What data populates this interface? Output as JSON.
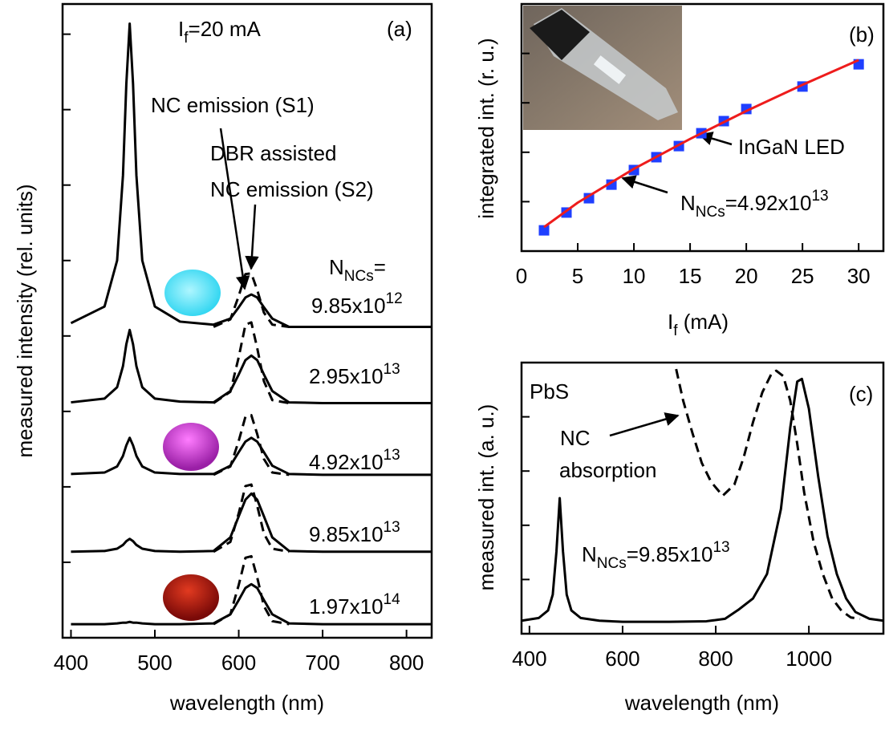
{
  "chart_data": [
    {
      "type": "line",
      "xlabel": "wavelength (nm)",
      "ylabel": "measured intensity (rel. units)",
      "xlim": [
        390,
        830
      ],
      "xticks": [
        400,
        500,
        600,
        700,
        800
      ],
      "ylim": [
        0,
        8.4
      ],
      "yticks": [
        1,
        2,
        3,
        4,
        5,
        6,
        7,
        8
      ],
      "x": [
        400,
        440,
        455,
        462,
        466,
        470,
        474,
        478,
        485,
        500,
        530,
        570,
        590,
        600,
        608,
        615,
        622,
        630,
        640,
        660,
        700,
        830
      ],
      "series": [
        {
          "color": "#000000",
          "dashed": false,
          "values": [
            4.17,
            4.39,
            5.0,
            6.13,
            7.34,
            8.14,
            7.34,
            6.13,
            5.0,
            4.39,
            4.19,
            4.15,
            4.23,
            4.38,
            4.51,
            4.55,
            4.51,
            4.38,
            4.23,
            4.12,
            4.12,
            4.12
          ]
        },
        {
          "color": "#000000",
          "dashed": true,
          "values": [
            null,
            null,
            null,
            null,
            null,
            null,
            null,
            null,
            null,
            null,
            null,
            4.12,
            4.22,
            4.53,
            4.82,
            4.83,
            4.61,
            4.31,
            4.15,
            4.12,
            null,
            null
          ]
        },
        {
          "color": "#000000",
          "dashed": false,
          "values": [
            3.12,
            3.17,
            3.32,
            3.6,
            3.89,
            4.08,
            3.89,
            3.6,
            3.32,
            3.17,
            3.13,
            3.12,
            3.27,
            3.49,
            3.68,
            3.74,
            3.68,
            3.49,
            3.27,
            3.12,
            3.11,
            3.11
          ]
        },
        {
          "color": "#000000",
          "dashed": true,
          "values": [
            null,
            null,
            null,
            null,
            null,
            null,
            null,
            null,
            null,
            null,
            null,
            3.11,
            3.26,
            3.72,
            4.15,
            4.18,
            3.84,
            3.4,
            3.15,
            3.11,
            null,
            null
          ]
        },
        {
          "color": "#000000",
          "dashed": false,
          "values": [
            2.17,
            2.19,
            2.27,
            2.41,
            2.55,
            2.65,
            2.55,
            2.41,
            2.27,
            2.19,
            2.17,
            2.17,
            2.28,
            2.46,
            2.6,
            2.65,
            2.6,
            2.46,
            2.28,
            2.17,
            2.16,
            2.16
          ]
        },
        {
          "color": "#000000",
          "dashed": true,
          "values": [
            null,
            null,
            null,
            null,
            null,
            null,
            null,
            null,
            null,
            null,
            null,
            2.16,
            2.27,
            2.61,
            2.93,
            2.95,
            2.7,
            2.37,
            2.19,
            2.16,
            null,
            null
          ]
        },
        {
          "color": "#000000",
          "dashed": false,
          "values": [
            1.14,
            1.15,
            1.18,
            1.23,
            1.28,
            1.31,
            1.28,
            1.23,
            1.18,
            1.15,
            1.14,
            1.15,
            1.33,
            1.61,
            1.83,
            1.91,
            1.83,
            1.61,
            1.33,
            1.15,
            1.14,
            1.14
          ]
        },
        {
          "color": "#000000",
          "dashed": true,
          "values": [
            null,
            null,
            null,
            null,
            null,
            null,
            null,
            null,
            null,
            null,
            null,
            1.14,
            1.27,
            1.65,
            2.01,
            2.03,
            1.75,
            1.38,
            1.18,
            1.14,
            null,
            null
          ]
        },
        {
          "color": "#000000",
          "dashed": false,
          "values": [
            0.18,
            0.18,
            0.19,
            0.2,
            0.2,
            0.21,
            0.2,
            0.2,
            0.19,
            0.18,
            0.18,
            0.19,
            0.31,
            0.5,
            0.66,
            0.71,
            0.66,
            0.5,
            0.31,
            0.19,
            0.18,
            0.18
          ]
        },
        {
          "color": "#000000",
          "dashed": true,
          "values": [
            null,
            null,
            null,
            null,
            null,
            null,
            null,
            null,
            null,
            null,
            null,
            0.18,
            0.31,
            0.7,
            1.06,
            1.08,
            0.8,
            0.42,
            0.22,
            0.18,
            null,
            null
          ]
        }
      ],
      "annotations": [
        {
          "parts": [
            {
              "text": "I"
            },
            {
              "text": "f",
              "sub": true
            },
            {
              "text": "=20 mA"
            }
          ]
        },
        {
          "parts": [
            {
              "text": "(a)"
            }
          ]
        },
        {
          "parts": [
            {
              "text": "NC emission (S1)"
            }
          ]
        },
        {
          "parts": [
            {
              "text": "DBR assisted"
            }
          ]
        },
        {
          "parts": [
            {
              "text": "NC emission (S2)"
            }
          ]
        },
        {
          "parts": [
            {
              "text": "N"
            },
            {
              "text": "NCs",
              "sub": true
            },
            {
              "text": "="
            }
          ]
        },
        {
          "parts": [
            {
              "text": "9.85x10"
            },
            {
              "text": "12",
              "sup": true
            }
          ]
        },
        {
          "parts": [
            {
              "text": "2.95x10"
            },
            {
              "text": "13",
              "sup": true
            }
          ]
        },
        {
          "parts": [
            {
              "text": "4.92x10"
            },
            {
              "text": "13",
              "sup": true
            }
          ]
        },
        {
          "parts": [
            {
              "text": "9.85x10"
            },
            {
              "text": "13",
              "sup": true
            }
          ]
        },
        {
          "parts": [
            {
              "text": "1.97x10"
            },
            {
              "text": "14",
              "sup": true
            }
          ]
        }
      ]
    },
    {
      "type": "line",
      "xlabel": [
        {
          "text": "I"
        },
        {
          "text": "f",
          "sub": true
        },
        {
          "text": " (mA)"
        }
      ],
      "ylabel": "integrated int. (r. u.)",
      "xlim": [
        0,
        32.2
      ],
      "xticks": [
        0,
        5,
        10,
        15,
        20,
        25,
        30
      ],
      "ylim": [
        0,
        10
      ],
      "yticks": [
        2,
        4,
        6,
        8
      ],
      "x": [
        2,
        4,
        6,
        8,
        10,
        12,
        14,
        16,
        18,
        20,
        25,
        30
      ],
      "series": [
        {
          "color": "#1f3fff",
          "style": "markers",
          "values": [
            0.84,
            1.56,
            2.14,
            2.69,
            3.28,
            3.8,
            4.25,
            4.77,
            5.26,
            5.75,
            6.66,
            7.56
          ]
        },
        {
          "color": "#ee1c1c",
          "style": "line",
          "x": [
            2,
            5,
            10,
            15,
            20,
            25,
            30
          ],
          "values": [
            0.97,
            1.96,
            3.33,
            4.54,
            5.67,
            6.73,
            7.73
          ]
        }
      ],
      "annotations": [
        {
          "parts": [
            {
              "text": "(b)"
            }
          ]
        },
        {
          "parts": [
            {
              "text": "InGaN LED"
            }
          ]
        },
        {
          "parts": [
            {
              "text": "N"
            },
            {
              "text": "NCs",
              "sub": true
            },
            {
              "text": "=4.92x10"
            },
            {
              "text": "13",
              "sup": true
            }
          ]
        }
      ]
    },
    {
      "type": "line",
      "xlabel": "wavelength (nm)",
      "ylabel": "measured int. (a. u.)",
      "xlim": [
        383,
        1160
      ],
      "xticks": [
        400,
        600,
        800,
        1000
      ],
      "ylim": [
        0,
        10
      ],
      "yticks": [
        2,
        4,
        6,
        8
      ],
      "series": [
        {
          "color": "#000000",
          "dashed": false,
          "x": [
            383,
            420,
            440,
            450,
            458,
            465,
            472,
            480,
            490,
            510,
            550,
            600,
            700,
            780,
            820,
            850,
            880,
            910,
            940,
            960,
            975,
            985,
            1000,
            1020,
            1040,
            1060,
            1080,
            1100,
            1130,
            1160
          ],
          "values": [
            0.48,
            0.58,
            0.86,
            1.44,
            3.04,
            5.0,
            3.04,
            1.44,
            0.86,
            0.58,
            0.48,
            0.44,
            0.44,
            0.46,
            0.55,
            0.9,
            1.3,
            2.2,
            4.6,
            7.6,
            9.3,
            9.4,
            8.3,
            5.8,
            3.6,
            2.2,
            1.3,
            0.8,
            0.55,
            0.48
          ]
        },
        {
          "color": "#000000",
          "dashed": true,
          "x": [
            715,
            730,
            750,
            770,
            790,
            815,
            840,
            860,
            880,
            900,
            920,
            930,
            945,
            960,
            975,
            990,
            1010,
            1030,
            1050,
            1070,
            1090,
            1110
          ],
          "values": [
            9.76,
            8.6,
            7.4,
            6.3,
            5.6,
            5.09,
            5.5,
            6.5,
            7.8,
            8.9,
            9.6,
            9.7,
            9.5,
            8.6,
            7.0,
            5.2,
            3.4,
            2.2,
            1.3,
            0.85,
            0.6,
            0.55
          ]
        }
      ],
      "annotations": [
        {
          "parts": [
            {
              "text": "PbS"
            }
          ]
        },
        {
          "parts": [
            {
              "text": "(c)"
            }
          ]
        },
        {
          "parts": [
            {
              "text": "NC"
            }
          ]
        },
        {
          "parts": [
            {
              "text": "absorption"
            }
          ]
        },
        {
          "parts": [
            {
              "text": "N"
            },
            {
              "text": "NCs",
              "sub": true
            },
            {
              "text": "=9.85x10"
            },
            {
              "text": "13",
              "sup": true
            }
          ]
        }
      ]
    }
  ]
}
